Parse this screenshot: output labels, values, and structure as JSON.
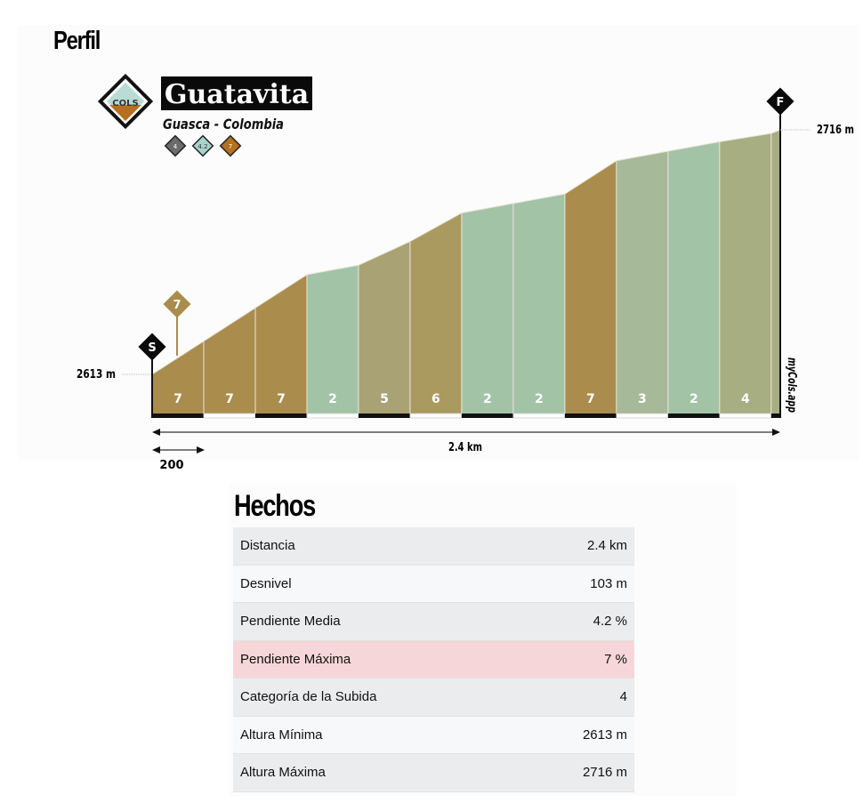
{
  "profile": {
    "title": "Perfil",
    "climb_name": "Guatavita",
    "location": "Guasca - Colombia",
    "logo_text": "COLS",
    "badges": [
      {
        "value": "4",
        "color": "#6b6b6b"
      },
      {
        "value": "4.2",
        "color": "#a8d4cc"
      },
      {
        "value": "7",
        "color": "#b5701f"
      }
    ],
    "start_marker": "S",
    "finish_marker": "F",
    "max_grade_marker": "7",
    "watermark": "myCols.app"
  },
  "chart_data": {
    "type": "area",
    "xlabel": "2.4 km",
    "scale_label": "200",
    "start_elevation_label": "2613 m",
    "end_elevation_label": "2716 m",
    "ylim": [
      2613,
      2716
    ],
    "distance_m": [
      0,
      200,
      400,
      600,
      800,
      1000,
      1200,
      1400,
      1600,
      1800,
      2000,
      2200,
      2400,
      2435
    ],
    "elevation_m": [
      2613,
      2627,
      2641,
      2655,
      2659,
      2669,
      2681,
      2685,
      2689,
      2703,
      2707,
      2711,
      2714.5,
      2716
    ],
    "segment_grades": [
      "7",
      "7",
      "7",
      "2",
      "5",
      "6",
      "2",
      "2",
      "7",
      "3",
      "2",
      "4",
      ""
    ],
    "grade_colors": {
      "2": "#a3c3a7",
      "3": "#a6b998",
      "4": "#a7ae82",
      "5": "#a9a274",
      "6": "#ab9a5f",
      "7": "#aa8c4d"
    }
  },
  "facts": {
    "title": "Hechos",
    "rows": [
      {
        "label": "Distancia",
        "value": "2.4 km"
      },
      {
        "label": "Desnivel",
        "value": "103 m"
      },
      {
        "label": "Pendiente Media",
        "value": "4.2 %"
      },
      {
        "label": "Pendiente Máxima",
        "value": "7 %",
        "highlight": true
      },
      {
        "label": "Categoría de la Subida",
        "value": "4"
      },
      {
        "label": "Altura Mínima",
        "value": "2613 m"
      },
      {
        "label": "Altura Máxima",
        "value": "2716 m"
      }
    ]
  }
}
